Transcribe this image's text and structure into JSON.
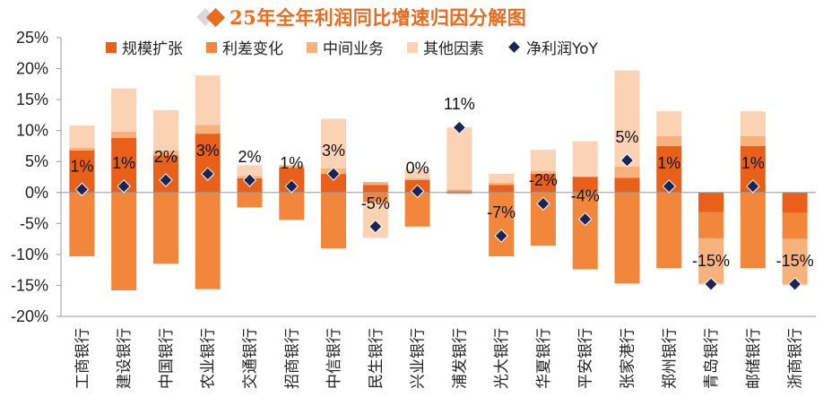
{
  "title": "25年全年利润同比增速归因分解图",
  "legend": [
    {
      "label": "规模扩张",
      "color": "#e8601a",
      "kind": "bar"
    },
    {
      "label": "利差变化",
      "color": "#f2873b",
      "kind": "bar"
    },
    {
      "label": "中间业务",
      "color": "#f7b27c",
      "kind": "bar"
    },
    {
      "label": "其他因素",
      "color": "#fbd3b4",
      "kind": "bar"
    },
    {
      "label": "净利润YoY",
      "color": "#1a2456",
      "kind": "marker"
    }
  ],
  "chart_data": {
    "type": "stacked-bar",
    "title": "25年全年利润同比增速归因分解图",
    "ylim": [
      -20,
      25
    ],
    "yticks": [
      -20,
      -15,
      -10,
      -5,
      0,
      5,
      10,
      15,
      20,
      25
    ],
    "ytick_labels": [
      "-20%",
      "-15%",
      "-10%",
      "-5%",
      "0%",
      "5%",
      "10%",
      "15%",
      "20%",
      "25%"
    ],
    "categories": [
      "工商银行",
      "建设银行",
      "中国银行",
      "农业银行",
      "交通银行",
      "招商银行",
      "中信银行",
      "民生银行",
      "兴业银行",
      "浦发银行",
      "光大银行",
      "华夏银行",
      "平安银行",
      "张家港行",
      "郑州银行",
      "青岛银行",
      "邮储银行",
      "浙商银行"
    ],
    "series": [
      {
        "name": "规模扩张",
        "values": [
          6.8,
          8.8,
          6.0,
          9.5,
          2.3,
          4.0,
          3.0,
          1.2,
          2.0,
          0.2,
          1.2,
          3.0,
          2.5,
          2.4,
          7.5,
          -3.2,
          7.5,
          -3.3
        ]
      },
      {
        "name": "利差变化",
        "values": [
          -10.3,
          -15.8,
          -11.5,
          -15.6,
          -2.4,
          -4.4,
          -9.0,
          -1.5,
          -5.5,
          -0.2,
          -10.3,
          -8.6,
          -12.4,
          -14.7,
          -12.2,
          -4.2,
          -12.2,
          -4.2
        ]
      },
      {
        "name": "中间业务",
        "values": [
          0.4,
          1.0,
          0.8,
          1.4,
          0.4,
          0.4,
          0.9,
          0.5,
          0.3,
          0.3,
          0.4,
          0.5,
          0.1,
          1.8,
          1.6,
          -7.3,
          1.6,
          -7.3
        ]
      },
      {
        "name": "其他因素",
        "values": [
          3.6,
          7.0,
          6.5,
          8.0,
          1.7,
          0.0,
          8.0,
          -5.8,
          1.5,
          10.0,
          1.4,
          3.4,
          5.7,
          15.5,
          4.0,
          -0.2,
          4.0,
          -0.2
        ]
      }
    ],
    "yoy": {
      "name": "净利润YoY",
      "values": [
        0.5,
        1.0,
        2.0,
        3.0,
        2.0,
        1.0,
        3.0,
        -5.5,
        0.2,
        10.5,
        -7.0,
        -1.8,
        -4.3,
        5.2,
        1.0,
        -14.8,
        1.0,
        -14.8
      ],
      "labels": [
        "1%",
        "1%",
        "2%",
        "3%",
        "2%",
        "1%",
        "3%",
        "-5%",
        "0%",
        "11%",
        "-7%",
        "-2%",
        "-4%",
        "5%",
        "1%",
        "-15%",
        "1%",
        "-15%"
      ]
    }
  }
}
